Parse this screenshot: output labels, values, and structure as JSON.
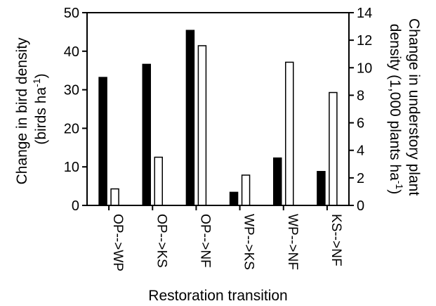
{
  "chart_data": {
    "type": "bar",
    "categories": [
      "OP-->WP",
      "OP-->KS",
      "OP-->NF",
      "WP-->KS",
      "WP-->NF",
      "KS-->NF"
    ],
    "series": [
      {
        "axis": "left",
        "color": "#000000",
        "values": [
          33.2,
          36.6,
          45.4,
          3.4,
          12.3,
          8.8
        ]
      },
      {
        "axis": "right",
        "color": "#ffffff",
        "values": [
          1.2,
          3.5,
          11.6,
          2.2,
          10.4,
          8.2
        ]
      }
    ],
    "xlabel": "Restoration transition",
    "ylabel_left": {
      "line1": "Change in bird density",
      "line2_prefix": "(birds ha",
      "line2_sup": "-1",
      "line2_suffix": ")"
    },
    "ylabel_right": {
      "line1": "Change in understory plant",
      "line2_prefix": "density (1,000 plants ha",
      "line2_sup": "-1",
      "line2_suffix": ")"
    },
    "ylim_left": [
      0,
      50
    ],
    "ylim_right": [
      0,
      14
    ],
    "yticks_left": [
      "0",
      "10",
      "20",
      "30",
      "40",
      "50"
    ],
    "yticks_right": [
      "0",
      "2",
      "4",
      "6",
      "8",
      "10",
      "12",
      "14"
    ],
    "grid": false,
    "legend": "none"
  }
}
